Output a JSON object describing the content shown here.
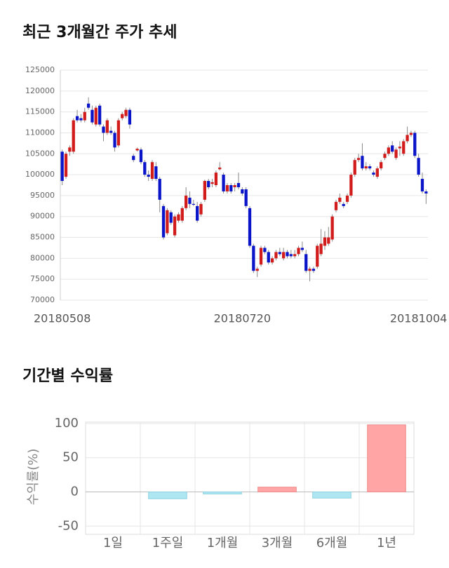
{
  "chart_data": [
    {
      "type": "candlestick",
      "title": "최근 3개월간 주가 추세",
      "categories": [
        "20180508",
        null,
        null,
        null,
        null,
        null,
        null,
        null,
        null,
        null,
        null,
        null,
        null,
        null,
        null,
        null,
        null,
        null,
        null,
        null,
        null,
        null,
        null,
        null,
        null,
        null,
        null,
        null,
        null,
        null,
        null,
        null,
        null,
        null,
        null,
        null,
        null,
        null,
        null,
        null,
        null,
        null,
        null,
        null,
        null,
        null,
        null,
        null,
        "20180720",
        null,
        null,
        null,
        null,
        null,
        null,
        null,
        null,
        null,
        null,
        null,
        null,
        null,
        null,
        null,
        null,
        null,
        null,
        null,
        null,
        null,
        null,
        null,
        null,
        null,
        null,
        null,
        null,
        null,
        null,
        null,
        null,
        null,
        null,
        null,
        null,
        null,
        null,
        null,
        null,
        null,
        null,
        null,
        null,
        null,
        null,
        "20181004",
        null,
        null
      ],
      "open": [
        105500,
        99500,
        105500,
        105500,
        114000,
        113500,
        113000,
        117000,
        115500,
        112000,
        116500,
        111500,
        110000,
        110500,
        110000,
        107000,
        113500,
        114000,
        115500,
        104500,
        105800,
        106000,
        103000,
        100000,
        99000,
        102000,
        99000,
        92500,
        86000,
        91000,
        85500,
        89000,
        89000,
        92000,
        94500,
        93000,
        92500,
        90500,
        94000,
        98500,
        97800,
        97500,
        101300,
        100000,
        96000,
        97500,
        97000,
        98000,
        96500,
        96500,
        92000,
        83000,
        77000,
        78500,
        82500,
        81500,
        79000,
        80000,
        81500,
        80000,
        81500,
        81000,
        80500,
        81000,
        82500,
        81000,
        77000,
        77500,
        78000,
        81000,
        83000,
        83500,
        84500,
        91500,
        93500,
        93000,
        93500,
        95000,
        100000,
        103500,
        104500,
        101500,
        102000,
        100500,
        99500,
        101500,
        104000,
        105000,
        107000,
        104000,
        106300,
        105000,
        108000,
        109500,
        110000,
        104000,
        99000,
        96000
      ],
      "high": [
        106000,
        105500,
        107000,
        113500,
        115500,
        114500,
        116000,
        118500,
        116500,
        116500,
        117000,
        112000,
        113500,
        111500,
        110500,
        113500,
        115000,
        116000,
        116000,
        105000,
        106500,
        106500,
        103500,
        101000,
        103500,
        103000,
        99500,
        93000,
        92000,
        91500,
        90500,
        91000,
        92500,
        97000,
        96000,
        94000,
        93500,
        93500,
        98800,
        99000,
        99000,
        101000,
        103000,
        100500,
        98000,
        98000,
        98000,
        100500,
        97000,
        97000,
        92500,
        83500,
        78000,
        83000,
        83000,
        82000,
        80500,
        82000,
        82500,
        82500,
        82000,
        82000,
        82000,
        83000,
        84000,
        82000,
        78000,
        78000,
        83500,
        87000,
        86500,
        87500,
        90500,
        94000,
        95500,
        93500,
        95500,
        100500,
        104000,
        105000,
        107500,
        103000,
        102500,
        101000,
        102000,
        103500,
        105500,
        107000,
        108000,
        106500,
        108000,
        108500,
        111500,
        110500,
        110500,
        105000,
        100500,
        96500
      ],
      "low": [
        97500,
        99000,
        104500,
        105000,
        112500,
        112500,
        112500,
        115500,
        112000,
        111500,
        111500,
        108000,
        109500,
        109500,
        105500,
        106500,
        113000,
        113500,
        111000,
        103000,
        105500,
        102500,
        99500,
        98500,
        98500,
        98500,
        91000,
        84500,
        85500,
        88000,
        85000,
        88500,
        88500,
        91500,
        92000,
        92500,
        88500,
        90000,
        93500,
        96500,
        97000,
        97000,
        101000,
        95500,
        95500,
        95500,
        96000,
        96500,
        95000,
        92000,
        82500,
        76500,
        75500,
        78000,
        81000,
        78500,
        78500,
        79500,
        80500,
        79500,
        80000,
        80000,
        80000,
        80500,
        81500,
        76500,
        74500,
        76500,
        77500,
        80500,
        82000,
        83000,
        84000,
        91000,
        93000,
        92000,
        93000,
        94500,
        99500,
        103000,
        101000,
        101000,
        101000,
        99500,
        99000,
        101000,
        103500,
        104500,
        105000,
        103500,
        104500,
        104500,
        107500,
        109000,
        104000,
        99500,
        95500,
        93000
      ],
      "close": [
        98500,
        105000,
        106500,
        113000,
        113000,
        113000,
        115000,
        116000,
        112500,
        116000,
        112000,
        110000,
        113000,
        110000,
        106500,
        113000,
        114500,
        115500,
        112000,
        103500,
        106200,
        103000,
        100000,
        99500,
        103000,
        99000,
        94000,
        85000,
        91500,
        88500,
        90000,
        90500,
        92000,
        95000,
        93000,
        92800,
        89000,
        93000,
        98500,
        97000,
        98200,
        100500,
        101700,
        96000,
        97500,
        96000,
        97500,
        97000,
        95500,
        92500,
        83000,
        77000,
        77500,
        82500,
        81500,
        79000,
        80000,
        81500,
        81000,
        81500,
        80500,
        80500,
        81000,
        82500,
        82000,
        77000,
        77500,
        77000,
        83000,
        83500,
        85000,
        85000,
        90000,
        93500,
        94500,
        92500,
        95000,
        100000,
        103500,
        104000,
        101500,
        102000,
        101500,
        100000,
        101500,
        103000,
        105000,
        106500,
        105500,
        106000,
        106700,
        108000,
        109500,
        110000,
        104500,
        100000,
        96000,
        95500
      ],
      "up_color": "#d21c1c",
      "down_color": "#0a14c8",
      "ylim": [
        70000,
        125000
      ],
      "yticks": [
        70000,
        75000,
        80000,
        85000,
        90000,
        95000,
        100000,
        105000,
        110000,
        115000,
        120000,
        125000
      ],
      "grid": true
    },
    {
      "type": "bar",
      "title": "기간별 수익률",
      "ylabel": "수익률(%)",
      "categories": [
        "1일",
        "1주일",
        "1개월",
        "3개월",
        "6개월",
        "1년"
      ],
      "values": [
        0,
        -10,
        -3,
        7,
        -9,
        98
      ],
      "positive_color": "#ffa5a5",
      "negative_color": "#aee7f2",
      "ylim": [
        -62,
        102
      ],
      "yticks": [
        -50,
        0,
        50,
        100
      ],
      "grid": true
    }
  ]
}
